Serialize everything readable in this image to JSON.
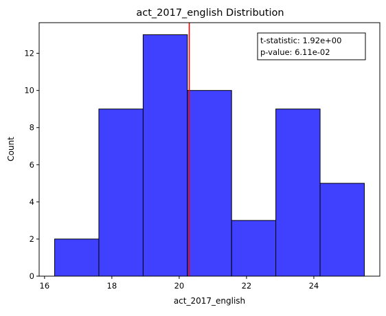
{
  "chart_data": {
    "type": "bar",
    "title": "act_2017_english Distribution",
    "xlabel": "act_2017_english",
    "ylabel": "Count",
    "bins": [
      {
        "x0": 16.3,
        "x1": 17.614,
        "count": 2
      },
      {
        "x0": 17.614,
        "x1": 18.929,
        "count": 9
      },
      {
        "x0": 18.929,
        "x1": 20.243,
        "count": 13
      },
      {
        "x0": 20.243,
        "x1": 21.557,
        "count": 10
      },
      {
        "x0": 21.557,
        "x1": 22.871,
        "count": 3
      },
      {
        "x0": 22.871,
        "x1": 24.186,
        "count": 9
      },
      {
        "x0": 24.186,
        "x1": 25.5,
        "count": 5
      }
    ],
    "xlim": [
      15.84,
      25.96
    ],
    "ylim": [
      0,
      13.65
    ],
    "xticks": [
      16,
      18,
      20,
      22,
      24
    ],
    "yticks": [
      0,
      2,
      4,
      6,
      8,
      10,
      12
    ],
    "mean_line": {
      "x": 20.3,
      "color": "#ff0000"
    },
    "bar_color": "#4040ff",
    "bar_edge_color": "#000000",
    "grid": false,
    "annotation": {
      "line1": "t-statistic:  1.92e+00",
      "line2": "p-value:  6.11e-02",
      "placement": "top-right"
    }
  }
}
